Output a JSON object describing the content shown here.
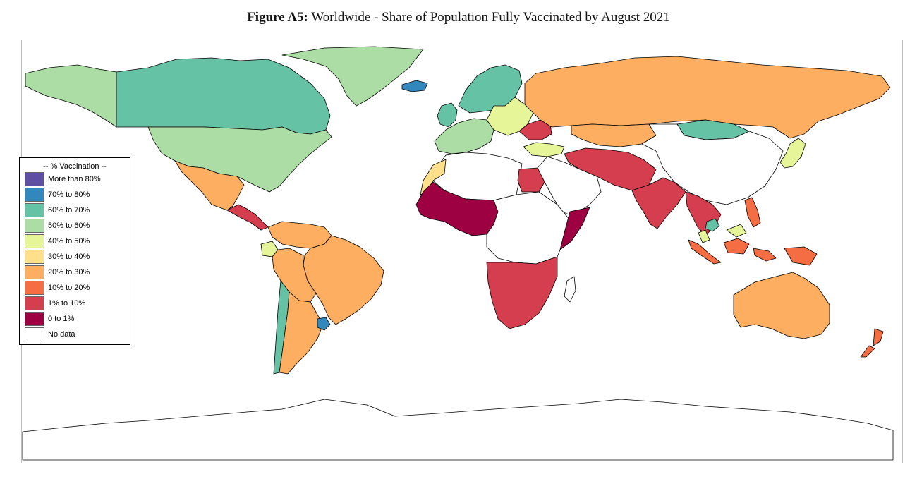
{
  "figure": {
    "label": "Figure A5:",
    "title": "Worldwide - Share of Population Fully Vaccinated by August 2021"
  },
  "legend": {
    "title": "-- % Vaccination --",
    "items": [
      {
        "label": "More than 80%",
        "color": "#5e4fa2"
      },
      {
        "label": "70% to 80%",
        "color": "#3288bd"
      },
      {
        "label": "60% to 70%",
        "color": "#66c2a5"
      },
      {
        "label": "50% to 60%",
        "color": "#abdda4"
      },
      {
        "label": "40% to 50%",
        "color": "#e6f598"
      },
      {
        "label": "30% to 40%",
        "color": "#fee08b"
      },
      {
        "label": "20% to 30%",
        "color": "#fdae61"
      },
      {
        "label": "10% to 20%",
        "color": "#f46d43"
      },
      {
        "label": "1% to 10%",
        "color": "#d53e4f"
      },
      {
        "label": "0 to 1%",
        "color": "#9e0142"
      },
      {
        "label": "No data",
        "color": "#ffffff"
      }
    ]
  },
  "regions": [
    {
      "id": "alaska",
      "bin": "50% to 60%"
    },
    {
      "id": "canada",
      "bin": "60% to 70%"
    },
    {
      "id": "greenland",
      "bin": "50% to 60%"
    },
    {
      "id": "iceland",
      "bin": "70% to 80%"
    },
    {
      "id": "united-states",
      "bin": "50% to 60%"
    },
    {
      "id": "mexico",
      "bin": "20% to 30%"
    },
    {
      "id": "central-america",
      "bin": "1% to 10%"
    },
    {
      "id": "colombia-venezuela",
      "bin": "20% to 30%"
    },
    {
      "id": "ecuador",
      "bin": "40% to 50%"
    },
    {
      "id": "brazil",
      "bin": "20% to 30%"
    },
    {
      "id": "peru-bolivia",
      "bin": "20% to 30%"
    },
    {
      "id": "argentina",
      "bin": "20% to 30%"
    },
    {
      "id": "chile",
      "bin": "60% to 70%"
    },
    {
      "id": "uruguay",
      "bin": "70% to 80%"
    },
    {
      "id": "scandinavia",
      "bin": "60% to 70%"
    },
    {
      "id": "united-kingdom",
      "bin": "60% to 70%"
    },
    {
      "id": "western-europe",
      "bin": "50% to 60%"
    },
    {
      "id": "eastern-europe",
      "bin": "40% to 50%"
    },
    {
      "id": "ukraine",
      "bin": "1% to 10%"
    },
    {
      "id": "russia",
      "bin": "20% to 30%"
    },
    {
      "id": "kazakhstan",
      "bin": "20% to 30%"
    },
    {
      "id": "mongolia",
      "bin": "60% to 70%"
    },
    {
      "id": "china",
      "bin": "No data"
    },
    {
      "id": "japan",
      "bin": "40% to 50%"
    },
    {
      "id": "turkey",
      "bin": "40% to 50%"
    },
    {
      "id": "iran-afghanistan-pakistan",
      "bin": "1% to 10%"
    },
    {
      "id": "india",
      "bin": "1% to 10%"
    },
    {
      "id": "arabia",
      "bin": "No data"
    },
    {
      "id": "egypt",
      "bin": "1% to 10%"
    },
    {
      "id": "north-africa",
      "bin": "No data"
    },
    {
      "id": "morocco",
      "bin": "30% to 40%"
    },
    {
      "id": "west-africa",
      "bin": "0 to 1%"
    },
    {
      "id": "central-africa",
      "bin": "No data"
    },
    {
      "id": "somalia",
      "bin": "0 to 1%"
    },
    {
      "id": "southern-africa",
      "bin": "1% to 10%"
    },
    {
      "id": "madagascar",
      "bin": "No data"
    },
    {
      "id": "southeast-asia",
      "bin": "1% to 10%"
    },
    {
      "id": "cambodia",
      "bin": "60% to 70%"
    },
    {
      "id": "malaysia",
      "bin": "40% to 50%"
    },
    {
      "id": "indonesia",
      "bin": "10% to 20%"
    },
    {
      "id": "philippines",
      "bin": "10% to 20%"
    },
    {
      "id": "australia",
      "bin": "20% to 30%"
    },
    {
      "id": "new-zealand",
      "bin": "10% to 20%"
    },
    {
      "id": "antarctica",
      "bin": "No data"
    }
  ]
}
